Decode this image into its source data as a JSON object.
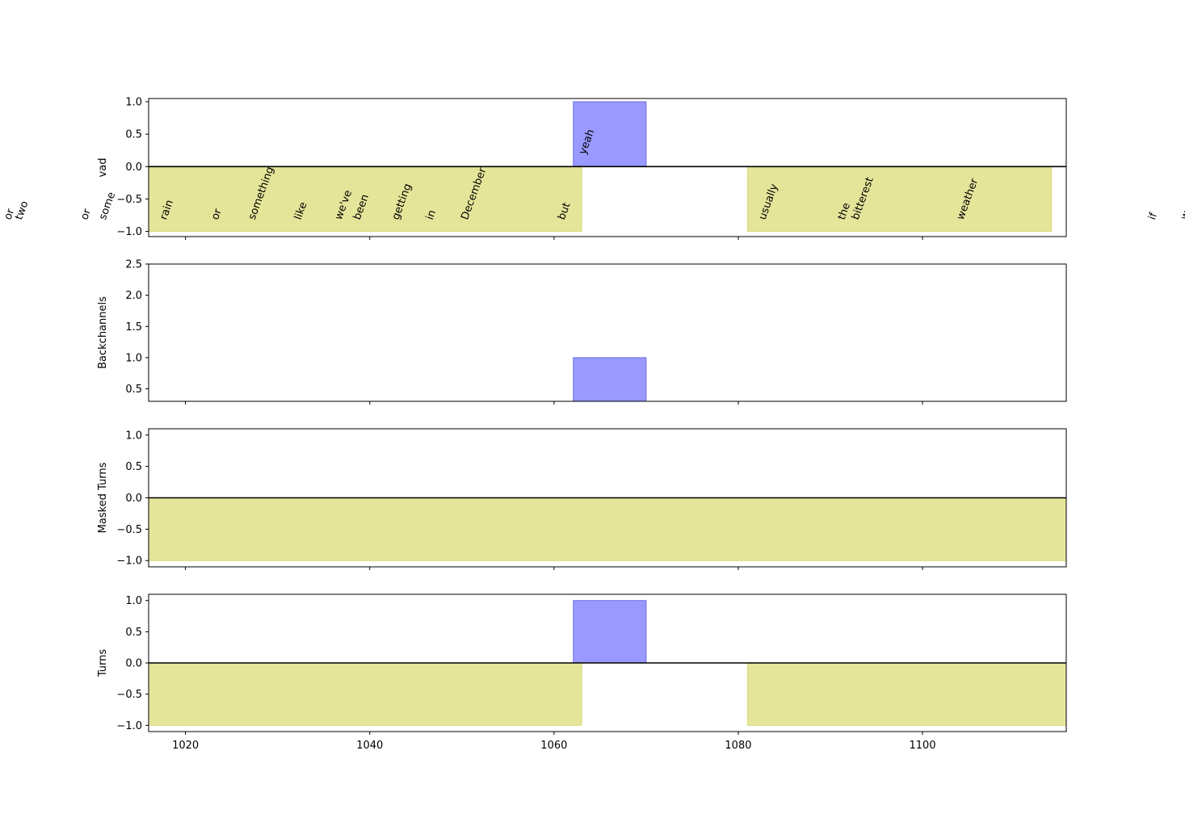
{
  "colors": {
    "speaker_a_fill": "#9999ff",
    "speaker_a_edge": "#6b6be6",
    "speaker_b_fill": "#e5e59a",
    "speaker_b_edge": "#d8d87a",
    "axis": "#000000",
    "background": "#ffffff"
  },
  "chart_data": [
    {
      "type": "area",
      "ylabel": "vad",
      "xlim": [
        1016,
        1115.6
      ],
      "ylim": [
        -1.08,
        1.05
      ],
      "yticks": [
        1.0,
        0.5,
        0.0,
        -0.5,
        -1.0
      ],
      "ytick_labels": [
        "1.0",
        "0.5",
        "0.0",
        "−0.5",
        "−1.0"
      ],
      "xticks": [
        1020,
        1040,
        1060,
        1080,
        1100
      ],
      "zero_line": true,
      "series": [
        {
          "speaker": "A",
          "value": 1,
          "segments": [
            [
              1062.1,
              1070.0
            ]
          ]
        },
        {
          "speaker": "B",
          "value": -1,
          "segments": [
            [
              1016,
              1063.0
            ],
            [
              1081.0,
              1114.0
            ]
          ]
        }
      ],
      "words": [
        {
          "text": "or",
          "x": 1001.0,
          "speaker": "B"
        },
        {
          "text": "two",
          "x": 1002.2,
          "speaker": "B"
        },
        {
          "text": "or",
          "x": 1009.3,
          "speaker": "B"
        },
        {
          "text": "some",
          "x": 1011.3,
          "speaker": "B"
        },
        {
          "text": "rain",
          "x": 1017.9,
          "speaker": "B"
        },
        {
          "text": "or",
          "x": 1023.5,
          "speaker": "B"
        },
        {
          "text": "something",
          "x": 1027.5,
          "speaker": "B"
        },
        {
          "text": "like",
          "x": 1032.5,
          "speaker": "B"
        },
        {
          "text": "we've",
          "x": 1036.9,
          "speaker": "B"
        },
        {
          "text": "been",
          "x": 1038.9,
          "speaker": "B"
        },
        {
          "text": "getting",
          "x": 1043.1,
          "speaker": "B"
        },
        {
          "text": "in",
          "x": 1046.8,
          "speaker": "B"
        },
        {
          "text": "December",
          "x": 1050.6,
          "speaker": "B"
        },
        {
          "text": "but",
          "x": 1061.1,
          "speaker": "B"
        },
        {
          "text": "yeah",
          "x": 1063.4,
          "speaker": "A"
        },
        {
          "text": "usually",
          "x": 1082.9,
          "speaker": "B"
        },
        {
          "text": "the",
          "x": 1091.5,
          "speaker": "B"
        },
        {
          "text": "bitterest",
          "x": 1093.0,
          "speaker": "B"
        },
        {
          "text": "weather",
          "x": 1104.4,
          "speaker": "B"
        },
        {
          "text": "if",
          "x": 1125.2,
          "speaker": "B"
        },
        {
          "text": "we're",
          "x": 1128.7,
          "speaker": "B"
        }
      ]
    },
    {
      "type": "area",
      "ylabel": "Backchannels",
      "xlim": [
        1016,
        1115.6
      ],
      "ylim": [
        0.3,
        2.5
      ],
      "yticks": [
        2.5,
        2.0,
        1.5,
        1.0,
        0.5
      ],
      "ytick_labels": [
        "2.5",
        "2.0",
        "1.5",
        "1.0",
        "0.5"
      ],
      "xticks": [
        1020,
        1040,
        1060,
        1080,
        1100
      ],
      "zero_line": false,
      "series": [
        {
          "speaker": "A",
          "value": 1,
          "segments": [
            [
              1062.1,
              1070.0
            ]
          ]
        }
      ]
    },
    {
      "type": "area",
      "ylabel": "Masked Turns",
      "xlim": [
        1016,
        1115.6
      ],
      "ylim": [
        -1.1,
        1.1
      ],
      "yticks": [
        1.0,
        0.5,
        0.0,
        -0.5,
        -1.0
      ],
      "ytick_labels": [
        "1.0",
        "0.5",
        "0.0",
        "−0.5",
        "−1.0"
      ],
      "xticks": [
        1020,
        1040,
        1060,
        1080,
        1100
      ],
      "zero_line": true,
      "series": [
        {
          "speaker": "B",
          "value": -1,
          "segments": [
            [
              1016,
              1115.6
            ]
          ]
        }
      ]
    },
    {
      "type": "area",
      "ylabel": "Turns",
      "xlim": [
        1016,
        1115.6
      ],
      "ylim": [
        -1.1,
        1.1
      ],
      "yticks": [
        1.0,
        0.5,
        0.0,
        -0.5,
        -1.0
      ],
      "ytick_labels": [
        "1.0",
        "0.5",
        "0.0",
        "−0.5",
        "−1.0"
      ],
      "xticks": [
        1020,
        1040,
        1060,
        1080,
        1100
      ],
      "xtick_labels": [
        "1020",
        "1040",
        "1060",
        "1080",
        "1100"
      ],
      "zero_line": true,
      "series": [
        {
          "speaker": "A",
          "value": 1,
          "segments": [
            [
              1062.1,
              1070.0
            ]
          ]
        },
        {
          "speaker": "B",
          "value": -1,
          "segments": [
            [
              1016,
              1063.0
            ],
            [
              1081.0,
              1115.6
            ]
          ]
        }
      ]
    }
  ]
}
